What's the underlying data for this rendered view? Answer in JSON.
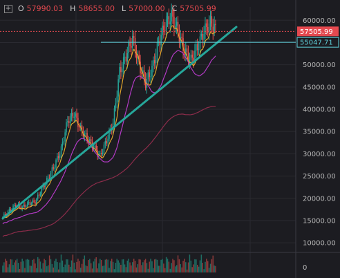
{
  "header": {
    "expand_icon": "plus-square-icon",
    "open_label": "O",
    "open_value": "57990.03",
    "high_label": "H",
    "high_value": "58655.00",
    "low_label": "L",
    "low_value": "57000.00",
    "close_label": "C",
    "close_value": "57505.99"
  },
  "colors": {
    "up": "#26a69a",
    "down": "#ef5350",
    "background": "#1c1c21",
    "trendline": "#26a69a",
    "ma_fast": "#e0a52c",
    "ma_mid": "#b23ac4",
    "ma_slow": "#8b2c4a",
    "horizontal_line": "#5fd2dc",
    "price_tag": "#e4494f",
    "level_tag": "#5fd2dc"
  },
  "chart_data": {
    "type": "candlestick",
    "y_axis": {
      "ticks": [
        10000,
        15000,
        20000,
        25000,
        30000,
        35000,
        40000,
        45000,
        50000,
        55000,
        60000
      ],
      "ylim": [
        8000,
        63000
      ]
    },
    "volume_axis": {
      "ticks": [
        0
      ]
    },
    "last_price_tag": "57505.99",
    "horizontal_level": {
      "value": 55047.71,
      "label": "55047.71"
    },
    "trendline": {
      "from": 15500,
      "to": 58500
    },
    "close_path": [
      15800,
      17200,
      18500,
      18000,
      18900,
      19200,
      22000,
      24500,
      27500,
      31000,
      37500,
      39000,
      35500,
      33500,
      31500,
      29500,
      33000,
      37000,
      48500,
      52000,
      56000,
      50000,
      46000,
      49000,
      55000,
      59000,
      61000,
      57500,
      53000,
      51000,
      54000,
      57500,
      59500,
      57500
    ]
  }
}
